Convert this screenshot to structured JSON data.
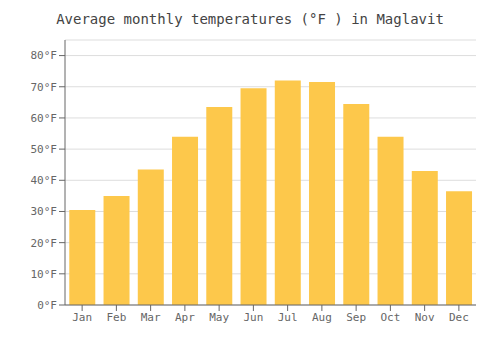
{
  "chart_data": {
    "type": "bar",
    "title": "Average monthly temperatures (°F ) in Maglavit",
    "categories": [
      "Jan",
      "Feb",
      "Mar",
      "Apr",
      "May",
      "Jun",
      "Jul",
      "Aug",
      "Sep",
      "Oct",
      "Nov",
      "Dec"
    ],
    "values": [
      30.5,
      35.0,
      43.5,
      54.0,
      63.5,
      69.5,
      72.0,
      71.5,
      64.5,
      54.0,
      43.0,
      36.5
    ],
    "color": "#FDC84B",
    "ylim": [
      0,
      85
    ],
    "yticks": [
      {
        "value": 0,
        "label": "0°F"
      },
      {
        "value": 10,
        "label": "10°F"
      },
      {
        "value": 20,
        "label": "20°F"
      },
      {
        "value": 30,
        "label": "30°F"
      },
      {
        "value": 40,
        "label": "40°F"
      },
      {
        "value": 50,
        "label": "50°F"
      },
      {
        "value": 60,
        "label": "60°F"
      },
      {
        "value": 70,
        "label": "70°F"
      },
      {
        "value": 80,
        "label": "80°F"
      }
    ],
    "grid": true
  }
}
